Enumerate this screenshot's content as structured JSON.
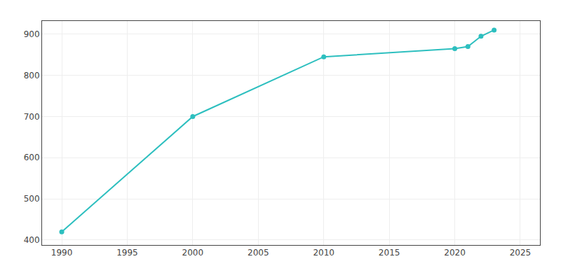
{
  "chart_data": {
    "type": "line",
    "x": [
      1990,
      2000,
      2010,
      2020,
      2021,
      2022,
      2023
    ],
    "values": [
      420,
      700,
      845,
      865,
      870,
      895,
      910
    ],
    "color": "#2dbfbf",
    "marker": "circle",
    "xlim": [
      1988.5,
      2026.5
    ],
    "ylim": [
      388,
      932
    ],
    "xticks": [
      1990,
      1995,
      2000,
      2005,
      2010,
      2015,
      2020,
      2025
    ],
    "yticks": [
      400,
      500,
      600,
      700,
      800,
      900
    ],
    "grid": true
  }
}
